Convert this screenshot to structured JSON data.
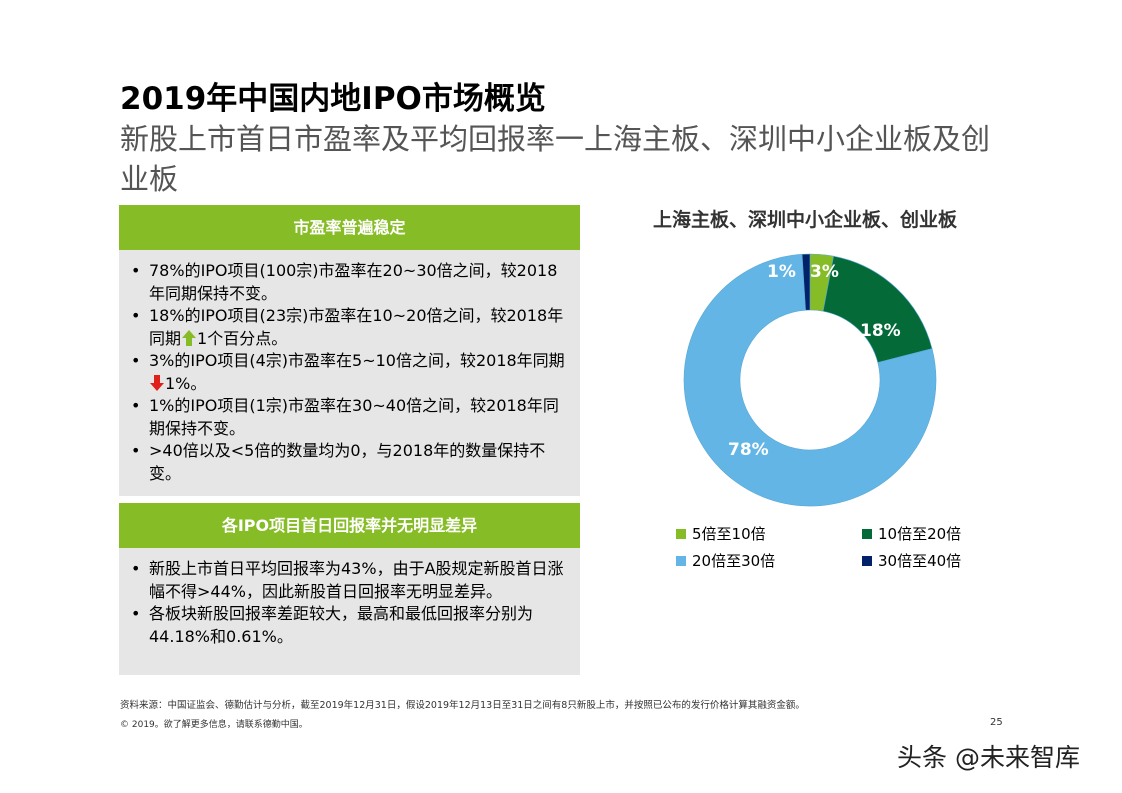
{
  "header": {
    "title": "2019年中国内地IPO市场概览",
    "subtitle": "新股上市首日市盈率及平均回报率一上海主板、深圳中小企业板及创业板"
  },
  "panel1": {
    "heading": "市盈率普遍稳定",
    "bullets": [
      {
        "text": "78%的IPO项目(100宗)市盈率在20~30倍之间，较2018年同期保持不变。"
      },
      {
        "pre": "18%的IPO项目(23宗)市盈率在10~20倍之间，较2018年同期",
        "icon": "arrow-up-icon",
        "post": "1个百分点。"
      },
      {
        "pre": "3%的IPO项目(4宗)市盈率在5~10倍之间，较2018年同期",
        "icon": "arrow-down-icon",
        "post": "1%。"
      },
      {
        "text": "1%的IPO项目(1宗)市盈率在30~40倍之间，较2018年同期保持不变。"
      },
      {
        "text": ">40倍以及<5倍的数量均为0，与2018年的数量保持不变。"
      }
    ]
  },
  "panel2": {
    "heading": "各IPO项目首日回报率并无明显差异",
    "bullets": [
      {
        "text": "新股上市首日平均回报率为43%，由于A股规定新股首日涨幅不得>44%，因此新股首日回报率无明显差异。"
      },
      {
        "text": "各板块新股回报率差距较大，最高和最低回报率分别为44.18%和0.61%。"
      }
    ]
  },
  "chart_data": {
    "type": "pie",
    "variant": "donut",
    "title": "上海主板、深圳中小企业板、创业板",
    "categories": [
      "5倍至10倍",
      "10倍至20倍",
      "20倍至30倍",
      "30倍至40倍"
    ],
    "values": [
      3,
      18,
      78,
      1
    ],
    "labels": [
      "3%",
      "18%",
      "78%",
      "1%"
    ],
    "colors": [
      "#86bc25",
      "#046a38",
      "#62b5e5",
      "#012169"
    ],
    "start_angle": "12 o'clock, clockwise",
    "legend_position": "bottom"
  },
  "legend": [
    {
      "label": "5倍至10倍",
      "color": "#86bc25"
    },
    {
      "label": "10倍至20倍",
      "color": "#046a38"
    },
    {
      "label": "20倍至30倍",
      "color": "#62b5e5"
    },
    {
      "label": "30倍至40倍",
      "color": "#012169"
    }
  ],
  "footer": {
    "source": "资料来源：中国证监会、德勤估计与分析，截至2019年12月31日，假设2019年12月13日至31日之间有8只新股上市，并按照已公布的发行价格计算其融资金额。",
    "copyright": "© 2019。欲了解更多信息，请联系德勤中国。",
    "page_number": "25"
  },
  "watermark": "头条 @未来智库",
  "colors": {
    "brand_green": "#86bc25",
    "panel_gray": "#e6e6e6",
    "arrow_up": "#86bc25",
    "arrow_down": "#e0201b"
  }
}
